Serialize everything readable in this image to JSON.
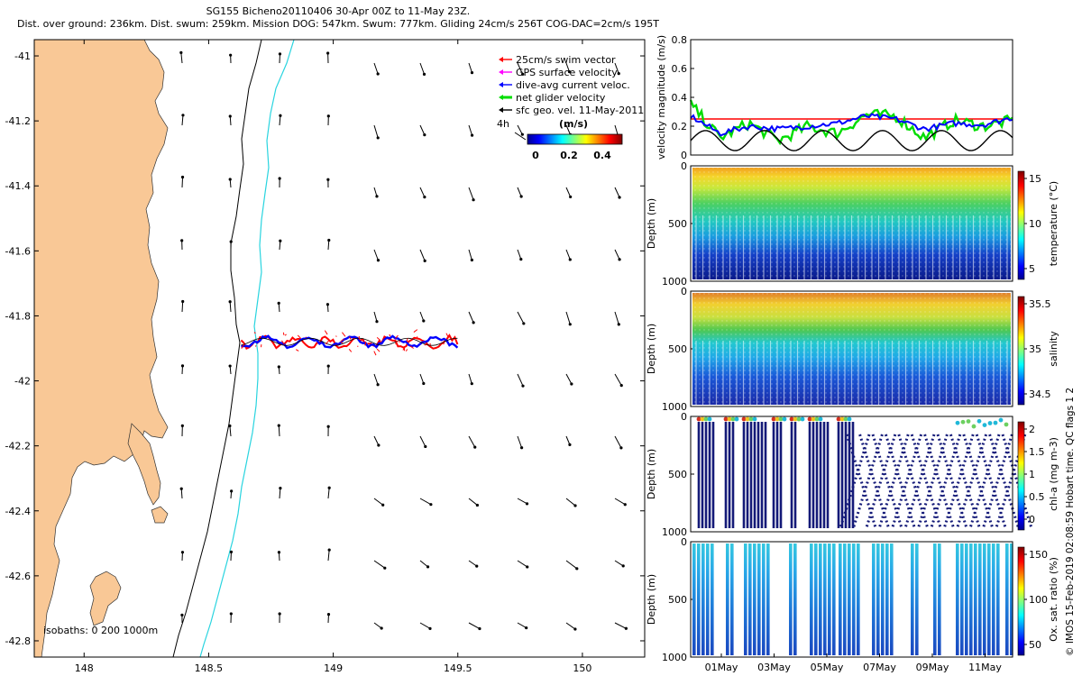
{
  "header": {
    "line1": "SG155 Bicheno20110406 30-Apr 00Z to 11-May 23Z.",
    "line2": "Dist. over ground: 236km. Dist. swum: 259km. Mission DOG: 547km. Swum: 777km. Gliding 24cm/s 256T COG-DAC=2cm/s 195T"
  },
  "colors": {
    "land": "#f9c896",
    "isobath_200": "#000000",
    "isobath_1000": "#29d4df",
    "swim": "#ff0000",
    "gps": "#ff00ff",
    "dac": "#0000ff",
    "net": "#00dd00",
    "geo": "#000000"
  },
  "map": {
    "legend": [
      {
        "key": "swim",
        "label": "25cm/s swim vector"
      },
      {
        "key": "gps",
        "label": "GPS surface velocity"
      },
      {
        "key": "dac",
        "label": "dive-avg current veloc."
      },
      {
        "key": "net",
        "label": "net glider velocity"
      },
      {
        "key": "geo",
        "label": "sfc geo. vel. 11-May-2011"
      }
    ],
    "colorbar": {
      "title": "(m/s)",
      "scale_label": "4h",
      "ticks": [
        "0",
        "0.2",
        "0.4"
      ]
    },
    "isobaths_label": "isobaths: 0   200  1000m",
    "x_ticks": [
      "148",
      "148.5",
      "149",
      "149.5",
      "150"
    ],
    "y_ticks": [
      "-41",
      "-41.2",
      "-41.4",
      "-41.6",
      "-41.8",
      "-42",
      "-42.2",
      "-42.4",
      "-42.6",
      "-42.8"
    ]
  },
  "chart_data": [
    {
      "type": "map",
      "xlim": [
        147.8,
        150.25
      ],
      "ylim": [
        -42.85,
        -40.95
      ],
      "x_ticks": [
        148,
        148.5,
        149,
        149.5,
        150
      ],
      "y_ticks": [
        -41,
        -41.2,
        -41.4,
        -41.6,
        -41.8,
        -42,
        -42.2,
        -42.4,
        -42.6,
        -42.8
      ],
      "track": {
        "lon_range": [
          148.63,
          149.5
        ],
        "lat": -41.88
      }
    },
    {
      "type": "line",
      "ylabel": "velocity magnitude (m/s)",
      "ylim": [
        0,
        0.8
      ],
      "y_ticks": [
        "0",
        "0.2",
        "0.4",
        "0.6",
        "0.8"
      ],
      "series": [
        {
          "key": "swim",
          "values": [
            0.25,
            0.25,
            0.25,
            0.25,
            0.25,
            0.25,
            0.25,
            0.25,
            0.25,
            0.25,
            0.25,
            0.25
          ]
        },
        {
          "key": "net",
          "values": [
            0.35,
            0.12,
            0.22,
            0.1,
            0.2,
            0.15,
            0.28,
            0.27,
            0.12,
            0.24,
            0.2,
            0.24
          ]
        },
        {
          "key": "dac",
          "values": [
            0.27,
            0.15,
            0.2,
            0.18,
            0.2,
            0.22,
            0.27,
            0.25,
            0.18,
            0.22,
            0.21,
            0.26
          ]
        },
        {
          "key": "geo",
          "values": [
            0.1,
            0.17,
            0.1,
            0.03,
            0.12,
            0.03,
            0.15,
            0.1,
            0.17,
            0.1,
            0.05,
            0.07
          ]
        }
      ]
    },
    {
      "type": "scatter",
      "ylabel": "Depth (m)",
      "y_ticks": [
        "0",
        "500",
        "1000"
      ],
      "cbar_label": "temperature (°C)",
      "cbar_ticks": [
        "15",
        "10",
        "5"
      ]
    },
    {
      "type": "scatter",
      "ylabel": "Depth (m)",
      "y_ticks": [
        "0",
        "500",
        "1000"
      ],
      "cbar_label": "salinity",
      "cbar_ticks": [
        "35.5",
        "35",
        "34.5"
      ]
    },
    {
      "type": "scatter",
      "ylabel": "Depth (m)",
      "y_ticks": [
        "0",
        "500",
        "1000"
      ],
      "cbar_label": "chl-a (mg m-3)",
      "cbar_ticks": [
        "2",
        "1.5",
        "1",
        "0.5",
        "0"
      ]
    },
    {
      "type": "scatter",
      "ylabel": "Depth (m)",
      "y_ticks": [
        "0",
        "500",
        "1000"
      ],
      "cbar_label": "Ox. sat. ratio (%)",
      "cbar_ticks": [
        "150",
        "100",
        "50"
      ],
      "x_ticks": [
        "01May",
        "03May",
        "05May",
        "07May",
        "09May",
        "11May"
      ]
    }
  ],
  "side_note": "© IMOS 15-Feb-2019 02:08:59 Hobart time. QC flags 1  2"
}
